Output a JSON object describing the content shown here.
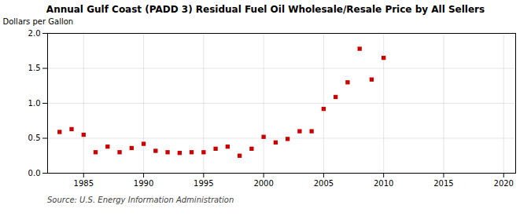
{
  "chart_data": {
    "type": "scatter",
    "title": "Annual Gulf Coast (PADD 3) Residual Fuel Oil Wholesale/Resale Price by All Sellers",
    "ylabel": "Dollars per Gallon",
    "source": "Source: U.S. Energy Information Administration",
    "x": [
      1983,
      1984,
      1985,
      1986,
      1987,
      1988,
      1989,
      1990,
      1991,
      1992,
      1993,
      1994,
      1995,
      1996,
      1997,
      1998,
      1999,
      2000,
      2001,
      2002,
      2003,
      2004,
      2005,
      2006,
      2007,
      2008,
      2009,
      2010
    ],
    "values": [
      0.59,
      0.63,
      0.55,
      0.3,
      0.38,
      0.3,
      0.36,
      0.42,
      0.32,
      0.3,
      0.29,
      0.3,
      0.3,
      0.35,
      0.38,
      0.25,
      0.35,
      0.52,
      0.44,
      0.49,
      0.6,
      0.6,
      0.92,
      1.09,
      1.3,
      1.78,
      1.34,
      1.65
    ],
    "color": "#cc0000",
    "marker": "square",
    "xlim": [
      1982,
      2021
    ],
    "xticks": [
      1985,
      1990,
      1995,
      2000,
      2005,
      2010,
      2015,
      2020
    ],
    "ylim": [
      0.0,
      2.0
    ],
    "yticks": [
      {
        "value": 0.0,
        "label": "0.0"
      },
      0.5,
      {
        "value": 1.0,
        "label": "1.0"
      },
      1.5,
      {
        "value": 2.0,
        "label": "2.0"
      }
    ],
    "grid": true
  }
}
